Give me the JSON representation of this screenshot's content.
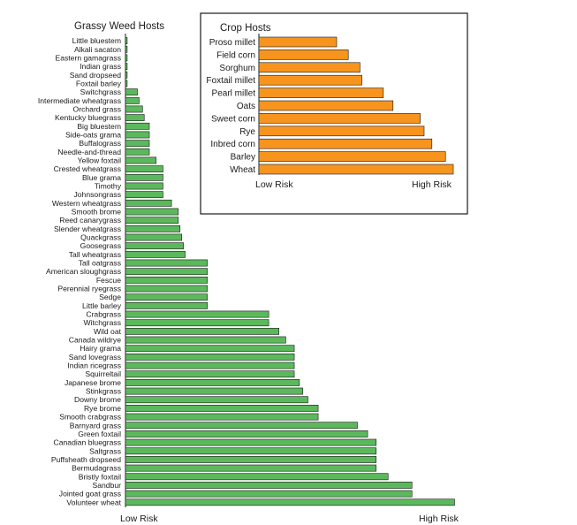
{
  "chart_data": [
    {
      "type": "bar",
      "orientation": "horizontal",
      "title": "Grassy Weed Hosts",
      "xlabel_low": "Low Risk",
      "xlabel_high": "High Risk",
      "xlim": [
        0,
        100
      ],
      "bar_color": "#5cb85c",
      "categories": [
        "Little bluestem",
        "Alkali sacaton",
        "Eastern gamagrass",
        "Indian grass",
        "Sand dropseed",
        "Foxtail barley",
        "Switchgrass",
        "Intermediate wheatgrass",
        "Orchard grass",
        "Kentucky bluegrass",
        "Big bluestem",
        "Side-oats grama",
        "Buffalograss",
        "Needle-and-thread",
        "Yellow foxtail",
        "Crested wheatgrass",
        "Blue grama",
        "Timothy",
        "Johnsongrass",
        "Western wheatgrass",
        "Smooth brome",
        "Reed canarygrass",
        "Slender wheatgrass",
        "Quackgrass",
        "Goosegrass",
        "Tall wheatgrass",
        "Tall oatgrass",
        "American sloughgrass",
        "Fescue",
        "Perennial ryegrass",
        "Sedge",
        "Little barley",
        "Crabgrass",
        "Witchgrass",
        "Wild oat",
        "Canada wildrye",
        "Hairy grama",
        "Sand lovegrass",
        "Indian ricegrass",
        "Squirreltail",
        "Japanese brome",
        "Stinkgrass",
        "Downy brome",
        "Rye brome",
        "Smooth crabgrass",
        "Barnyard grass",
        "Green foxtail",
        "Canadian bluegrass",
        "Saltgrass",
        "Puffsheath dropseed",
        "Bermudagrass",
        "Bristly foxtail",
        "Sandbur",
        "Jointed goat grass",
        "Volunteer wheat"
      ],
      "values": [
        0.5,
        0.5,
        0.5,
        0.5,
        0.5,
        0.5,
        3.5,
        4,
        5,
        5.5,
        7,
        7,
        7,
        7,
        9,
        11,
        11,
        11,
        11,
        13.5,
        15.5,
        15.5,
        16,
        16.5,
        17,
        17.5,
        24,
        24,
        24,
        24,
        24,
        24,
        42,
        42,
        45,
        47,
        49.5,
        49.5,
        49.5,
        49.5,
        51,
        52,
        53.5,
        56.5,
        56.5,
        68,
        71,
        73.5,
        73.5,
        73.5,
        73.5,
        77,
        84,
        84,
        96.5
      ]
    },
    {
      "type": "bar",
      "orientation": "horizontal",
      "title": "Crop Hosts",
      "xlabel_low": "Low Risk",
      "xlabel_high": "High Risk",
      "xlim": [
        0,
        100
      ],
      "bar_color": "#f7941d",
      "categories": [
        "Proso millet",
        "Field corn",
        "Sorghum",
        "Foxtail millet",
        "Pearl millet",
        "Oats",
        "Sweet corn",
        "Rye",
        "Inbred corn",
        "Barley",
        "Wheat"
      ],
      "values": [
        40,
        46,
        52,
        53,
        64,
        69,
        83,
        85,
        89,
        96,
        100
      ]
    }
  ]
}
